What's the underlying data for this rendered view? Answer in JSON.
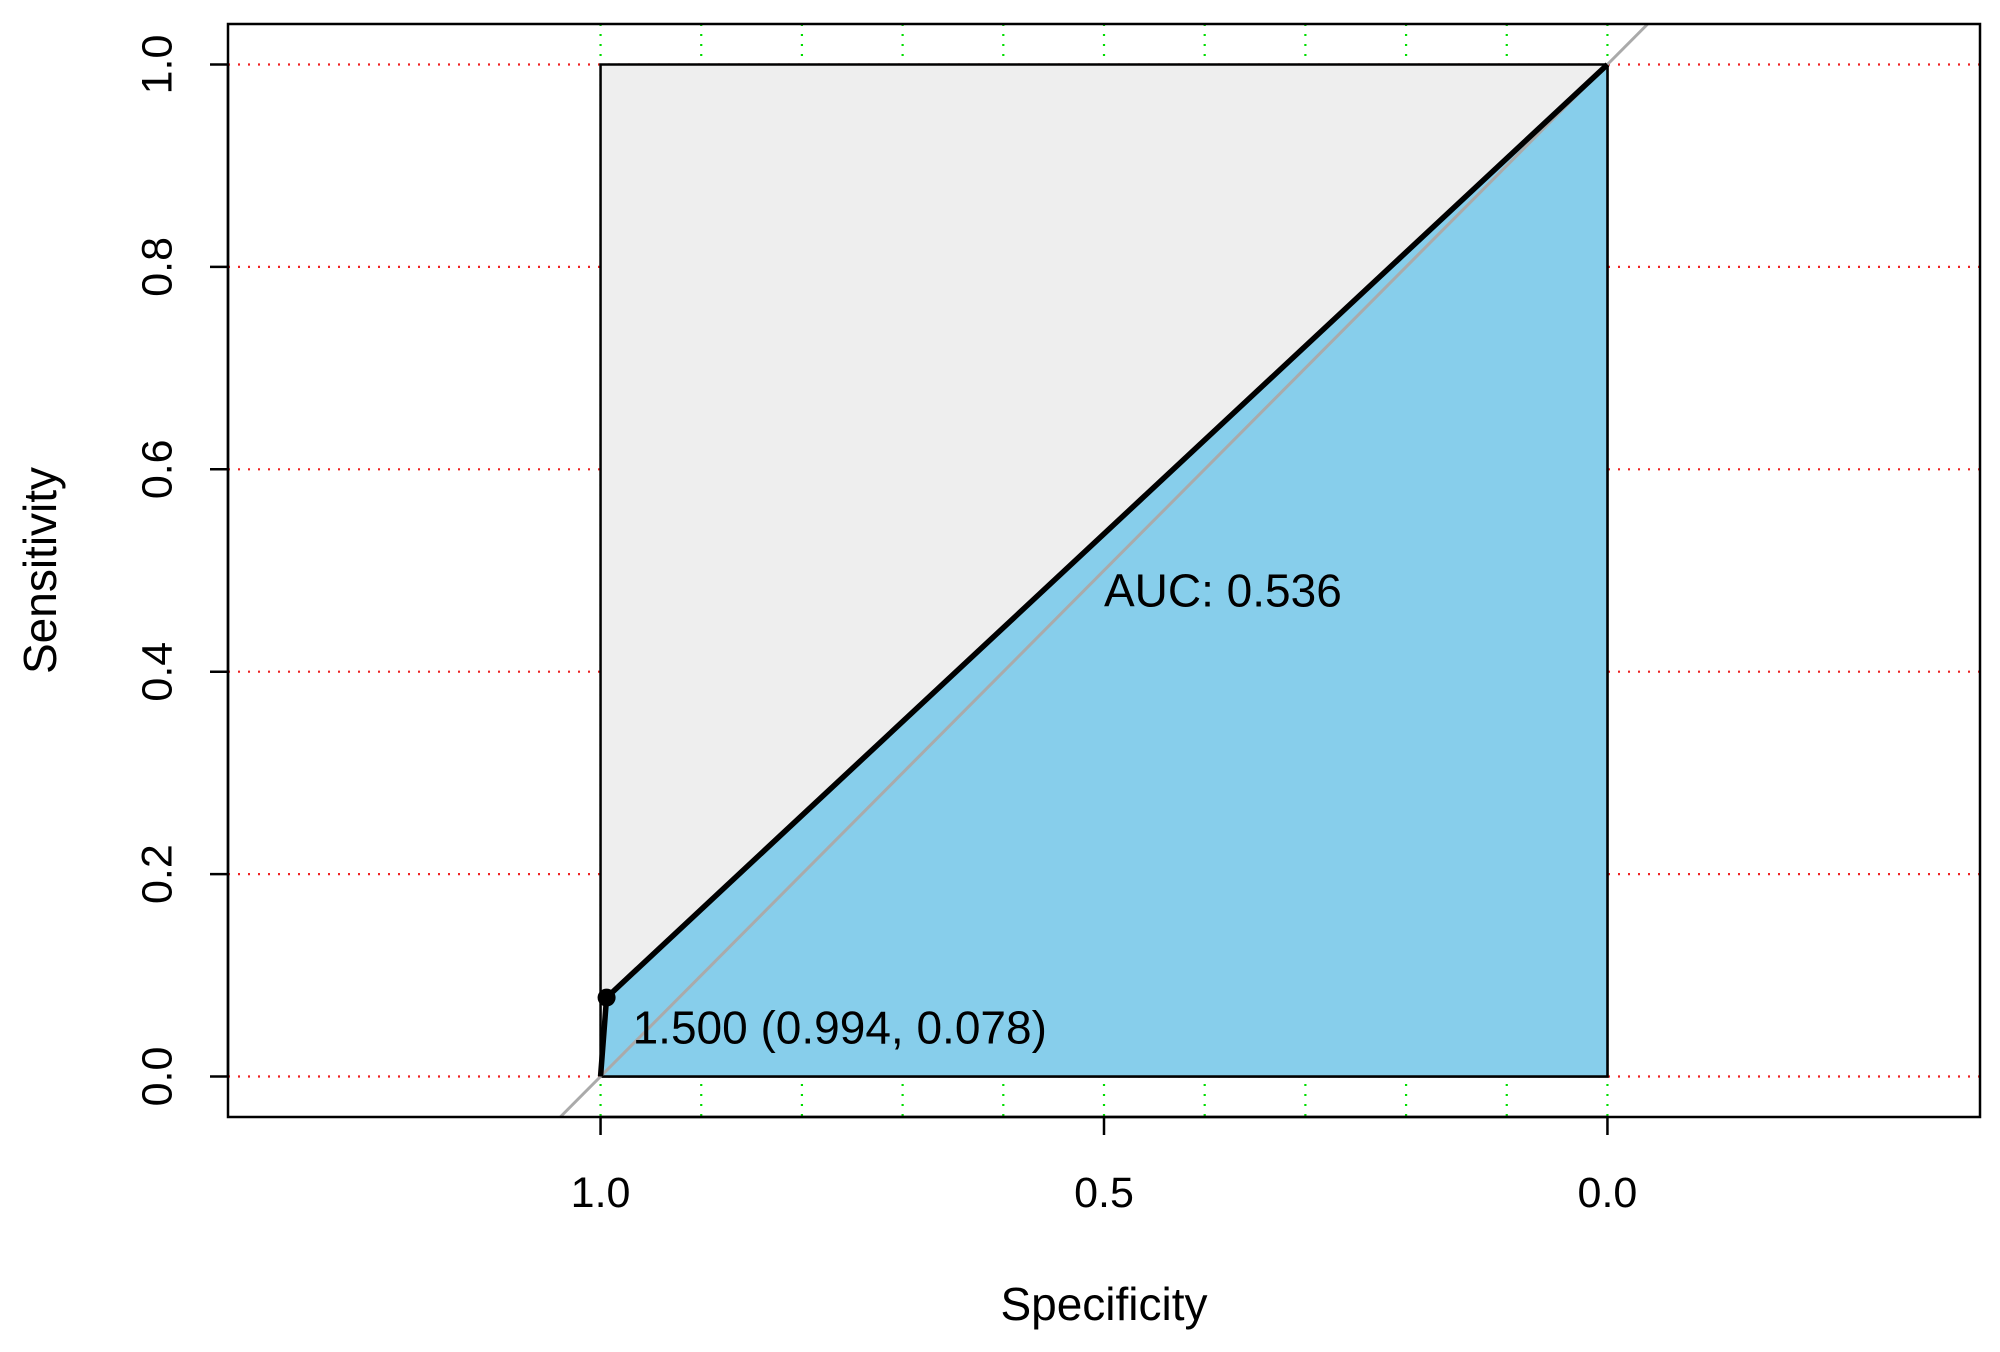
{
  "chart_data": {
    "type": "line",
    "title": "",
    "xlabel": "Specificity",
    "ylabel": "Sensitivity",
    "x_reversed": true,
    "xlim": [
      1.37,
      -0.37
    ],
    "ylim": [
      -0.04,
      1.04
    ],
    "x_ticks": [
      1.0,
      0.5,
      0.0
    ],
    "x_tick_labels": [
      "1.0",
      "0.5",
      "0.0"
    ],
    "y_ticks": [
      0.0,
      0.2,
      0.4,
      0.6,
      0.8,
      1.0
    ],
    "y_tick_labels": [
      "0.0",
      "0.2",
      "0.4",
      "0.6",
      "0.8",
      "1.0"
    ],
    "grid": {
      "vertical": [
        1.0,
        0.9,
        0.8,
        0.7,
        0.6,
        0.5,
        0.4,
        0.3,
        0.2,
        0.1,
        0.0
      ],
      "horizontal": [
        0.0,
        0.2,
        0.4,
        0.6,
        0.8,
        1.0
      ],
      "vertical_color": "#00dd00",
      "horizontal_color": "#ee2222",
      "style": "dotted"
    },
    "series": [
      {
        "specificity": [
          1.0,
          0.994,
          0.0
        ],
        "sensitivity": [
          0.0,
          0.078,
          1.0
        ],
        "color": "#000000"
      }
    ],
    "auc_value": 0.536,
    "auc_label": "AUC: 0.536",
    "auc_label_position": [
      0.5,
      0.48
    ],
    "auc_polygon_color": "#87ceeb",
    "max_auc_polygon_color": "#eeeeee",
    "best_threshold": {
      "specificity": 0.994,
      "sensitivity": 0.078,
      "label": "1.500 (0.994, 0.078)"
    },
    "reference_line": {
      "from": [
        1.0,
        0.0
      ],
      "to": [
        0.0,
        1.0
      ],
      "color": "#aaaaaa"
    }
  }
}
